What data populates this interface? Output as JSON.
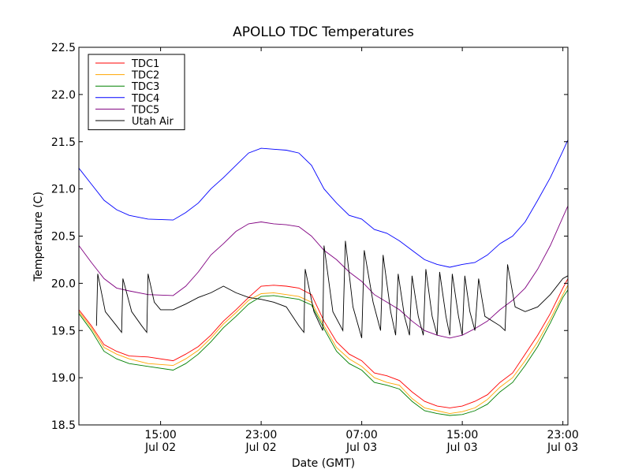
{
  "chart_data": {
    "type": "line",
    "title": "APOLLO TDC Temperatures",
    "xlabel": "Date (GMT)",
    "ylabel": "Temperature (C)",
    "xlim": [
      8.5,
      47.4
    ],
    "ylim": [
      18.5,
      22.5
    ],
    "grid": false,
    "legend_position": "top-left",
    "y_ticks": [
      18.5,
      19.0,
      19.5,
      20.0,
      20.5,
      21.0,
      21.5,
      22.0,
      22.5
    ],
    "y_tick_labels": [
      "18.5",
      "19.0",
      "19.5",
      "20.0",
      "20.5",
      "21.0",
      "21.5",
      "22.0",
      "22.5"
    ],
    "x_ticks": [
      {
        "x": 15,
        "line1": "15:00",
        "line2": "Jul 02"
      },
      {
        "x": 23,
        "line1": "23:00",
        "line2": "Jul 02"
      },
      {
        "x": 31,
        "line1": "07:00",
        "line2": "Jul 03"
      },
      {
        "x": 39,
        "line1": "15:00",
        "line2": "Jul 03"
      },
      {
        "x": 47,
        "line1": "23:00",
        "line2": "Jul 03"
      }
    ],
    "series": [
      {
        "name": "TDC1",
        "color": "#ff0000",
        "points": [
          [
            8.5,
            19.72
          ],
          [
            9.5,
            19.55
          ],
          [
            10.5,
            19.35
          ],
          [
            11.5,
            19.28
          ],
          [
            12.5,
            19.23
          ],
          [
            14,
            19.22
          ],
          [
            16,
            19.18
          ],
          [
            17,
            19.25
          ],
          [
            18,
            19.33
          ],
          [
            19,
            19.45
          ],
          [
            20,
            19.6
          ],
          [
            21,
            19.72
          ],
          [
            22,
            19.85
          ],
          [
            23,
            19.97
          ],
          [
            24,
            19.98
          ],
          [
            25,
            19.97
          ],
          [
            26,
            19.95
          ],
          [
            27,
            19.88
          ],
          [
            28,
            19.6
          ],
          [
            29,
            19.38
          ],
          [
            30,
            19.25
          ],
          [
            31,
            19.18
          ],
          [
            32,
            19.05
          ],
          [
            33,
            19.02
          ],
          [
            34,
            18.97
          ],
          [
            35,
            18.85
          ],
          [
            36,
            18.75
          ],
          [
            37,
            18.7
          ],
          [
            38,
            18.68
          ],
          [
            39,
            18.7
          ],
          [
            40,
            18.75
          ],
          [
            41,
            18.82
          ],
          [
            42,
            18.95
          ],
          [
            43,
            19.05
          ],
          [
            44,
            19.25
          ],
          [
            45,
            19.45
          ],
          [
            46,
            19.68
          ],
          [
            47,
            19.95
          ],
          [
            47.4,
            20.05
          ]
        ]
      },
      {
        "name": "TDC2",
        "color": "#ffa500",
        "points": [
          [
            8.5,
            19.7
          ],
          [
            9.5,
            19.53
          ],
          [
            10.5,
            19.32
          ],
          [
            11.5,
            19.25
          ],
          [
            12.5,
            19.2
          ],
          [
            14,
            19.15
          ],
          [
            16,
            19.13
          ],
          [
            17,
            19.2
          ],
          [
            18,
            19.29
          ],
          [
            19,
            19.42
          ],
          [
            20,
            19.57
          ],
          [
            21,
            19.69
          ],
          [
            22,
            19.82
          ],
          [
            23,
            19.89
          ],
          [
            24,
            19.9
          ],
          [
            25,
            19.88
          ],
          [
            26,
            19.86
          ],
          [
            27,
            19.8
          ],
          [
            28,
            19.55
          ],
          [
            29,
            19.32
          ],
          [
            30,
            19.2
          ],
          [
            31,
            19.12
          ],
          [
            32,
            19.0
          ],
          [
            33,
            18.95
          ],
          [
            34,
            18.92
          ],
          [
            35,
            18.78
          ],
          [
            36,
            18.68
          ],
          [
            37,
            18.65
          ],
          [
            38,
            18.62
          ],
          [
            39,
            18.64
          ],
          [
            40,
            18.68
          ],
          [
            41,
            18.77
          ],
          [
            42,
            18.9
          ],
          [
            43,
            19.0
          ],
          [
            44,
            19.18
          ],
          [
            45,
            19.38
          ],
          [
            46,
            19.62
          ],
          [
            47,
            19.88
          ],
          [
            47.4,
            19.98
          ]
        ]
      },
      {
        "name": "TDC3",
        "color": "#008000",
        "points": [
          [
            8.5,
            19.68
          ],
          [
            9.5,
            19.5
          ],
          [
            10.5,
            19.28
          ],
          [
            11.5,
            19.2
          ],
          [
            12.5,
            19.15
          ],
          [
            14,
            19.12
          ],
          [
            16,
            19.08
          ],
          [
            17,
            19.15
          ],
          [
            18,
            19.25
          ],
          [
            19,
            19.38
          ],
          [
            20,
            19.53
          ],
          [
            21,
            19.65
          ],
          [
            22,
            19.78
          ],
          [
            23,
            19.86
          ],
          [
            24,
            19.87
          ],
          [
            25,
            19.85
          ],
          [
            26,
            19.83
          ],
          [
            27,
            19.77
          ],
          [
            28,
            19.52
          ],
          [
            29,
            19.28
          ],
          [
            30,
            19.15
          ],
          [
            31,
            19.08
          ],
          [
            32,
            18.95
          ],
          [
            33,
            18.92
          ],
          [
            34,
            18.88
          ],
          [
            35,
            18.75
          ],
          [
            36,
            18.65
          ],
          [
            37,
            18.62
          ],
          [
            38,
            18.6
          ],
          [
            39,
            18.61
          ],
          [
            40,
            18.65
          ],
          [
            41,
            18.72
          ],
          [
            42,
            18.85
          ],
          [
            43,
            18.95
          ],
          [
            44,
            19.13
          ],
          [
            45,
            19.33
          ],
          [
            46,
            19.58
          ],
          [
            47,
            19.85
          ],
          [
            47.4,
            19.93
          ]
        ]
      },
      {
        "name": "TDC4",
        "color": "#0000ff",
        "points": [
          [
            8.5,
            21.22
          ],
          [
            9.5,
            21.05
          ],
          [
            10.5,
            20.88
          ],
          [
            11.5,
            20.78
          ],
          [
            12.5,
            20.72
          ],
          [
            14,
            20.68
          ],
          [
            16,
            20.67
          ],
          [
            17,
            20.75
          ],
          [
            18,
            20.85
          ],
          [
            19,
            21.0
          ],
          [
            20,
            21.12
          ],
          [
            21,
            21.25
          ],
          [
            22,
            21.38
          ],
          [
            23,
            21.43
          ],
          [
            24,
            21.42
          ],
          [
            25,
            21.41
          ],
          [
            26,
            21.38
          ],
          [
            27,
            21.25
          ],
          [
            28,
            21.0
          ],
          [
            29,
            20.85
          ],
          [
            30,
            20.72
          ],
          [
            31,
            20.68
          ],
          [
            32,
            20.57
          ],
          [
            33,
            20.53
          ],
          [
            34,
            20.45
          ],
          [
            35,
            20.35
          ],
          [
            36,
            20.25
          ],
          [
            37,
            20.2
          ],
          [
            38,
            20.17
          ],
          [
            39,
            20.2
          ],
          [
            40,
            20.22
          ],
          [
            41,
            20.3
          ],
          [
            42,
            20.42
          ],
          [
            43,
            20.5
          ],
          [
            44,
            20.65
          ],
          [
            45,
            20.88
          ],
          [
            46,
            21.12
          ],
          [
            47,
            21.4
          ],
          [
            47.4,
            21.52
          ]
        ]
      },
      {
        "name": "TDC5",
        "color": "#800080",
        "points": [
          [
            8.5,
            20.4
          ],
          [
            9.5,
            20.22
          ],
          [
            10.5,
            20.05
          ],
          [
            11.5,
            19.95
          ],
          [
            12.5,
            19.92
          ],
          [
            14,
            19.88
          ],
          [
            16,
            19.87
          ],
          [
            17,
            19.97
          ],
          [
            18,
            20.12
          ],
          [
            19,
            20.3
          ],
          [
            20,
            20.42
          ],
          [
            21,
            20.55
          ],
          [
            22,
            20.63
          ],
          [
            23,
            20.65
          ],
          [
            24,
            20.63
          ],
          [
            25,
            20.62
          ],
          [
            26,
            20.6
          ],
          [
            27,
            20.5
          ],
          [
            28,
            20.35
          ],
          [
            29,
            20.25
          ],
          [
            30,
            20.12
          ],
          [
            31,
            20.02
          ],
          [
            32,
            19.88
          ],
          [
            33,
            19.8
          ],
          [
            34,
            19.72
          ],
          [
            35,
            19.6
          ],
          [
            36,
            19.5
          ],
          [
            37,
            19.45
          ],
          [
            38,
            19.42
          ],
          [
            39,
            19.45
          ],
          [
            40,
            19.52
          ],
          [
            41,
            19.6
          ],
          [
            42,
            19.72
          ],
          [
            43,
            19.82
          ],
          [
            44,
            19.95
          ],
          [
            45,
            20.15
          ],
          [
            46,
            20.4
          ],
          [
            47,
            20.7
          ],
          [
            47.4,
            20.82
          ]
        ]
      },
      {
        "name": "Utah Air",
        "color": "#000000",
        "points": [
          [
            9.9,
            19.55
          ],
          [
            10.0,
            20.1
          ],
          [
            10.6,
            19.7
          ],
          [
            11.5,
            19.55
          ],
          [
            11.9,
            19.48
          ],
          [
            12.0,
            20.05
          ],
          [
            12.7,
            19.7
          ],
          [
            13.5,
            19.55
          ],
          [
            13.9,
            19.48
          ],
          [
            14.0,
            20.1
          ],
          [
            14.5,
            19.8
          ],
          [
            15,
            19.72
          ],
          [
            16,
            19.72
          ],
          [
            17,
            19.78
          ],
          [
            18,
            19.85
          ],
          [
            19,
            19.9
          ],
          [
            20,
            19.97
          ],
          [
            21,
            19.9
          ],
          [
            22,
            19.85
          ],
          [
            23,
            19.83
          ],
          [
            24,
            19.8
          ],
          [
            25,
            19.75
          ],
          [
            26,
            19.55
          ],
          [
            26.4,
            19.48
          ],
          [
            26.5,
            20.15
          ],
          [
            27.2,
            19.7
          ],
          [
            27.9,
            19.5
          ],
          [
            28.0,
            20.4
          ],
          [
            28.7,
            19.7
          ],
          [
            29.5,
            19.5
          ],
          [
            29.7,
            20.45
          ],
          [
            30.3,
            19.75
          ],
          [
            31.0,
            19.42
          ],
          [
            31.2,
            20.35
          ],
          [
            31.9,
            19.8
          ],
          [
            32.5,
            19.5
          ],
          [
            32.7,
            20.3
          ],
          [
            33.3,
            19.7
          ],
          [
            33.7,
            19.45
          ],
          [
            33.9,
            20.1
          ],
          [
            34.4,
            19.65
          ],
          [
            34.8,
            19.45
          ],
          [
            35.0,
            20.08
          ],
          [
            35.5,
            19.65
          ],
          [
            35.9,
            19.45
          ],
          [
            36.1,
            20.15
          ],
          [
            36.6,
            19.65
          ],
          [
            37.0,
            19.45
          ],
          [
            37.2,
            20.12
          ],
          [
            37.7,
            19.65
          ],
          [
            38.0,
            19.45
          ],
          [
            38.2,
            20.1
          ],
          [
            38.7,
            19.65
          ],
          [
            39.0,
            19.45
          ],
          [
            39.2,
            20.08
          ],
          [
            39.6,
            19.7
          ],
          [
            40.0,
            19.5
          ],
          [
            40.3,
            20.05
          ],
          [
            40.8,
            19.65
          ],
          [
            42,
            19.55
          ],
          [
            42.4,
            19.5
          ],
          [
            42.6,
            20.2
          ],
          [
            43.2,
            19.75
          ],
          [
            44,
            19.7
          ],
          [
            45,
            19.75
          ],
          [
            46,
            19.88
          ],
          [
            47,
            20.05
          ],
          [
            47.4,
            20.08
          ]
        ]
      }
    ]
  }
}
